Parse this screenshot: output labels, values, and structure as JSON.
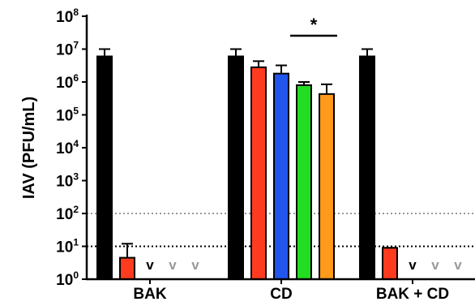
{
  "chart_data": {
    "type": "bar",
    "ylabel": "IAV (PFU/mL)",
    "yscale": "log",
    "ylim": [
      1,
      100000000
    ],
    "ytick_labels": [
      {
        "base": "10",
        "exp": "0"
      },
      {
        "base": "10",
        "exp": "1"
      },
      {
        "base": "10",
        "exp": "2"
      },
      {
        "base": "10",
        "exp": "3"
      },
      {
        "base": "10",
        "exp": "4"
      },
      {
        "base": "10",
        "exp": "5"
      },
      {
        "base": "10",
        "exp": "6"
      },
      {
        "base": "10",
        "exp": "7"
      },
      {
        "base": "10",
        "exp": "8"
      }
    ],
    "categories": [
      "BAK",
      "CD",
      "BAK + CD"
    ],
    "reference_lines": [
      {
        "y": 100,
        "style": "dotted",
        "color": "#999999"
      },
      {
        "y": 10,
        "style": "dotted",
        "color": "#000000"
      }
    ],
    "groups": [
      {
        "category": "BAK",
        "bars": [
          {
            "color": "#000000",
            "value": 6000000,
            "error": 10000000
          },
          {
            "color": "#ff3b1f",
            "value": 4.5,
            "error": 12
          },
          {
            "color": "#000000",
            "below_limit": true,
            "marker": "v"
          },
          {
            "color": "#9a9a9a",
            "below_limit": true,
            "marker": "v"
          },
          {
            "color": "#9a9a9a",
            "below_limit": true,
            "marker": "v"
          }
        ]
      },
      {
        "category": "CD",
        "bars": [
          {
            "color": "#000000",
            "value": 6000000,
            "error": 10000000
          },
          {
            "color": "#ff3b1f",
            "value": 2800000,
            "error": 4300000
          },
          {
            "color": "#2255ee",
            "value": 1800000,
            "error": 3200000
          },
          {
            "color": "#22dd22",
            "value": 800000,
            "error": 1000000
          },
          {
            "color": "#ff9a1a",
            "value": 430000,
            "error": 850000
          }
        ]
      },
      {
        "category": "BAK + CD",
        "bars": [
          {
            "color": "#000000",
            "value": 6000000,
            "error": 10000000
          },
          {
            "color": "#ff3b1f",
            "value": 9,
            "error": 9
          },
          {
            "color": "#000000",
            "below_limit": true,
            "marker": "v"
          },
          {
            "color": "#9a9a9a",
            "below_limit": true,
            "marker": "v"
          },
          {
            "color": "#9a9a9a",
            "below_limit": true,
            "marker": "v"
          }
        ]
      }
    ],
    "significance": {
      "label": "*",
      "group": "CD",
      "from_bar": 3,
      "to_bar": 4
    }
  }
}
